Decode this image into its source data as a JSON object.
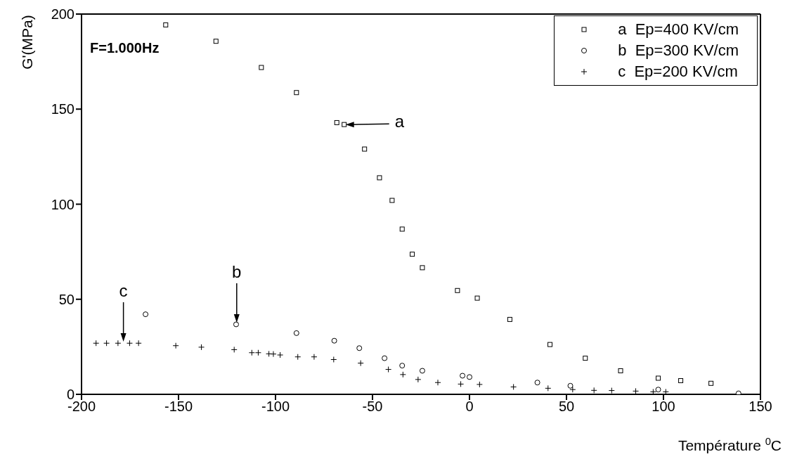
{
  "chart_data": {
    "type": "scatter",
    "xlabel": "Température $^{0}$C",
    "ylabel": "G'(MPa)",
    "xlim": [
      -200,
      150
    ],
    "xticks": [
      -200,
      -150,
      -100,
      -50,
      0,
      50,
      100,
      150
    ],
    "ylim": [
      0,
      200
    ],
    "yticks": [
      0,
      50,
      100,
      150,
      200
    ],
    "grid": false,
    "legend": "top right",
    "annotations": [
      "F=1.000Hz",
      {
        "text": "a",
        "x": -64.6,
        "y": 141.9
      },
      {
        "text": "b",
        "x": -120,
        "y": 37
      },
      {
        "text": "c",
        "x": -178.4,
        "y": 27
      }
    ],
    "series": [
      {
        "name": "a  Ep=400 KV/cm",
        "color": "#000000",
        "marker": "square",
        "x": [
          -156.6,
          -130.7,
          -107.3,
          -89.2,
          -68.4,
          -64.6,
          -54.1,
          -46.4,
          -39.9,
          -34.7,
          -29.5,
          -24.3,
          -6.2,
          4,
          20.8,
          41.5,
          59.7,
          77.9,
          97.3,
          108.9,
          124.5
        ],
        "values": [
          194.3,
          185.7,
          171.9,
          158.7,
          142.9,
          141.9,
          129,
          113.9,
          102,
          86.9,
          73.7,
          66.6,
          54.6,
          50.6,
          39.4,
          26.2,
          19,
          12.4,
          8.5,
          7.2,
          5.8
        ]
      },
      {
        "name": "b  Ep=300 KV/cm",
        "color": "#000000",
        "marker": "circle",
        "x": [
          -167,
          -120.3,
          -89.2,
          -69.7,
          -56.8,
          -43.8,
          -34.7,
          -24.3,
          -3.6,
          0,
          35,
          52,
          97.3,
          138.7
        ],
        "values": [
          42.1,
          36.8,
          32.2,
          28.2,
          24.3,
          19,
          15.1,
          12.4,
          9.8,
          9.1,
          6.2,
          4.5,
          2.5,
          0.5
        ]
      },
      {
        "name": "c  Ep=200 KV/cm",
        "color": "#000000",
        "marker": "cross",
        "x": [
          -192.5,
          -187.1,
          -181.2,
          -175.2,
          -170.6,
          -151.4,
          -138.2,
          -121.3,
          -112.2,
          -108.9,
          -103.4,
          -101.1,
          -97.6,
          -88.5,
          -80.1,
          -70,
          -56.1,
          -41.8,
          -34.3,
          -26.5,
          -16.3,
          -4.5,
          5.2,
          22.7,
          40.5,
          53.2,
          64.2,
          73.3,
          85.7,
          94.7,
          101.2
        ],
        "values": [
          26.9,
          26.9,
          26.9,
          26.9,
          26.9,
          25.6,
          24.8,
          23.5,
          21.9,
          21.9,
          21.3,
          21.2,
          20.7,
          19.7,
          19.7,
          18.3,
          16.4,
          13.1,
          10.4,
          7.8,
          6.2,
          5.4,
          5.2,
          3.9,
          3.2,
          2.5,
          2.1,
          2.0,
          1.7,
          1.3,
          1.3
        ]
      }
    ]
  }
}
